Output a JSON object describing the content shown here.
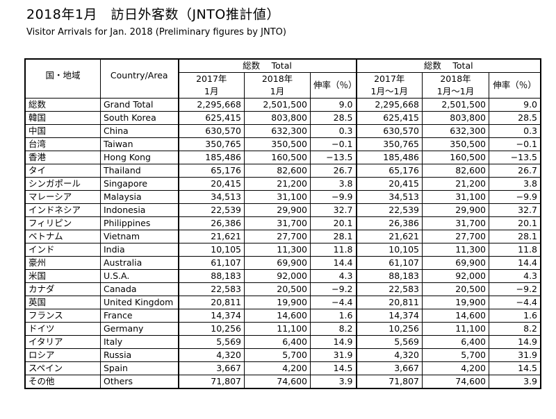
{
  "title": "2018年1月　訪日外客数（JNTO推計値）",
  "subtitle": "Visitor Arrivals for Jan. 2018 (Preliminary figures by JNTO)",
  "headers": {
    "region_jp": "国・地域",
    "region_en": "Country/Area",
    "group_left": "総数　 Total",
    "group_right": "総数　 Total",
    "left_2017": "2017年\n1月",
    "left_2018": "2018年\n1月",
    "left_growth": "伸率（％）",
    "right_2017": "2017年\n1月～1月",
    "right_2018": "2018年\n1月～1月",
    "right_growth": "伸率（％）"
  },
  "rows": [
    {
      "jp": "総数",
      "en": "Grand Total",
      "m2017": "2,295,668",
      "m2018": "2,501,500",
      "mg": "9.0",
      "c2017": "2,295,668",
      "c2018": "2,501,500",
      "cg": "9.0"
    },
    {
      "jp": "韓国",
      "en": "South Korea",
      "m2017": "625,415",
      "m2018": "803,800",
      "mg": "28.5",
      "c2017": "625,415",
      "c2018": "803,800",
      "cg": "28.5"
    },
    {
      "jp": "中国",
      "en": "China",
      "m2017": "630,570",
      "m2018": "632,300",
      "mg": "0.3",
      "c2017": "630,570",
      "c2018": "632,300",
      "cg": "0.3"
    },
    {
      "jp": "台湾",
      "en": "Taiwan",
      "m2017": "350,765",
      "m2018": "350,500",
      "mg": "−0.1",
      "c2017": "350,765",
      "c2018": "350,500",
      "cg": "−0.1"
    },
    {
      "jp": "香港",
      "en": "Hong Kong",
      "m2017": "185,486",
      "m2018": "160,500",
      "mg": "−13.5",
      "c2017": "185,486",
      "c2018": "160,500",
      "cg": "−13.5"
    },
    {
      "jp": "タイ",
      "en": "Thailand",
      "m2017": "65,176",
      "m2018": "82,600",
      "mg": "26.7",
      "c2017": "65,176",
      "c2018": "82,600",
      "cg": "26.7"
    },
    {
      "jp": "シンガポール",
      "en": "Singapore",
      "m2017": "20,415",
      "m2018": "21,200",
      "mg": "3.8",
      "c2017": "20,415",
      "c2018": "21,200",
      "cg": "3.8"
    },
    {
      "jp": "マレーシア",
      "en": "Malaysia",
      "m2017": "34,513",
      "m2018": "31,100",
      "mg": "−9.9",
      "c2017": "34,513",
      "c2018": "31,100",
      "cg": "−9.9"
    },
    {
      "jp": "インドネシア",
      "en": "Indonesia",
      "m2017": "22,539",
      "m2018": "29,900",
      "mg": "32.7",
      "c2017": "22,539",
      "c2018": "29,900",
      "cg": "32.7"
    },
    {
      "jp": "フィリピン",
      "en": "Philippines",
      "m2017": "26,386",
      "m2018": "31,700",
      "mg": "20.1",
      "c2017": "26,386",
      "c2018": "31,700",
      "cg": "20.1"
    },
    {
      "jp": "ベトナム",
      "en": "Vietnam",
      "m2017": "21,621",
      "m2018": "27,700",
      "mg": "28.1",
      "c2017": "21,621",
      "c2018": "27,700",
      "cg": "28.1"
    },
    {
      "jp": "インド",
      "en": "India",
      "m2017": "10,105",
      "m2018": "11,300",
      "mg": "11.8",
      "c2017": "10,105",
      "c2018": "11,300",
      "cg": "11.8"
    },
    {
      "jp": "豪州",
      "en": "Australia",
      "m2017": "61,107",
      "m2018": "69,900",
      "mg": "14.4",
      "c2017": "61,107",
      "c2018": "69,900",
      "cg": "14.4"
    },
    {
      "jp": "米国",
      "en": "U.S.A.",
      "m2017": "88,183",
      "m2018": "92,000",
      "mg": "4.3",
      "c2017": "88,183",
      "c2018": "92,000",
      "cg": "4.3"
    },
    {
      "jp": "カナダ",
      "en": "Canada",
      "m2017": "22,583",
      "m2018": "20,500",
      "mg": "−9.2",
      "c2017": "22,583",
      "c2018": "20,500",
      "cg": "−9.2"
    },
    {
      "jp": "英国",
      "en": "United Kingdom",
      "m2017": "20,811",
      "m2018": "19,900",
      "mg": "−4.4",
      "c2017": "20,811",
      "c2018": "19,900",
      "cg": "−4.4"
    },
    {
      "jp": "フランス",
      "en": "France",
      "m2017": "14,374",
      "m2018": "14,600",
      "mg": "1.6",
      "c2017": "14,374",
      "c2018": "14,600",
      "cg": "1.6"
    },
    {
      "jp": "ドイツ",
      "en": "Germany",
      "m2017": "10,256",
      "m2018": "11,100",
      "mg": "8.2",
      "c2017": "10,256",
      "c2018": "11,100",
      "cg": "8.2"
    },
    {
      "jp": "イタリア",
      "en": "Italy",
      "m2017": "5,569",
      "m2018": "6,400",
      "mg": "14.9",
      "c2017": "5,569",
      "c2018": "6,400",
      "cg": "14.9"
    },
    {
      "jp": "ロシア",
      "en": "Russia",
      "m2017": "4,320",
      "m2018": "5,700",
      "mg": "31.9",
      "c2017": "4,320",
      "c2018": "5,700",
      "cg": "31.9"
    },
    {
      "jp": "スペイン",
      "en": "Spain",
      "m2017": "3,667",
      "m2018": "4,200",
      "mg": "14.5",
      "c2017": "3,667",
      "c2018": "4,200",
      "cg": "14.5"
    },
    {
      "jp": "その他",
      "en": "Others",
      "m2017": "71,807",
      "m2018": "74,600",
      "mg": "3.9",
      "c2017": "71,807",
      "c2018": "74,600",
      "cg": "3.9"
    }
  ]
}
